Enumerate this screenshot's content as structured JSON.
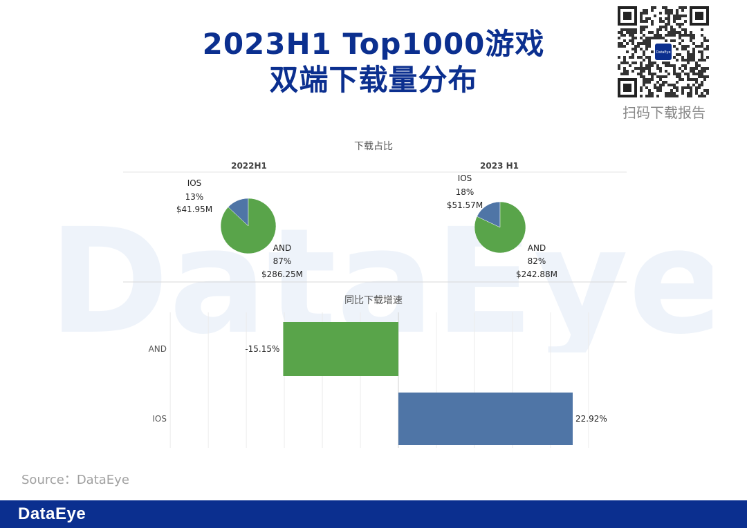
{
  "header": {
    "title_line1": "2023H1 Top1000游戏",
    "title_line2": "双端下载量分布",
    "qr_caption": "扫码下载报告",
    "qr_center_label": "DataEye"
  },
  "watermark_text": "DataEye",
  "colors": {
    "brand": "#0b2f8f",
    "android_green": "#59a44a",
    "ios_blue": "#4f75a6"
  },
  "chart_data": [
    {
      "type": "pie",
      "title": "下载占比",
      "subtitle": "2022H1",
      "slices": [
        {
          "name": "IOS",
          "percent": 13,
          "value_label": "$41.95M",
          "pct_label": "13%"
        },
        {
          "name": "AND",
          "percent": 87,
          "value_label": "$286.25M",
          "pct_label": "87%"
        }
      ]
    },
    {
      "type": "pie",
      "title": "下载占比",
      "subtitle": "2023 H1",
      "slices": [
        {
          "name": "IOS",
          "percent": 18,
          "value_label": "$51.57M",
          "pct_label": "18%"
        },
        {
          "name": "AND",
          "percent": 82,
          "value_label": "$242.88M",
          "pct_label": "82%"
        }
      ]
    },
    {
      "type": "bar",
      "orientation": "horizontal",
      "title": "同比下载增速",
      "categories": [
        "AND",
        "IOS"
      ],
      "values": [
        -15.15,
        22.92
      ],
      "data_labels": [
        "-15.15%",
        "22.92%"
      ],
      "xlim": [
        -30,
        30
      ]
    }
  ],
  "footer": {
    "source": "Source：DataEye",
    "logo": "DataEye"
  }
}
